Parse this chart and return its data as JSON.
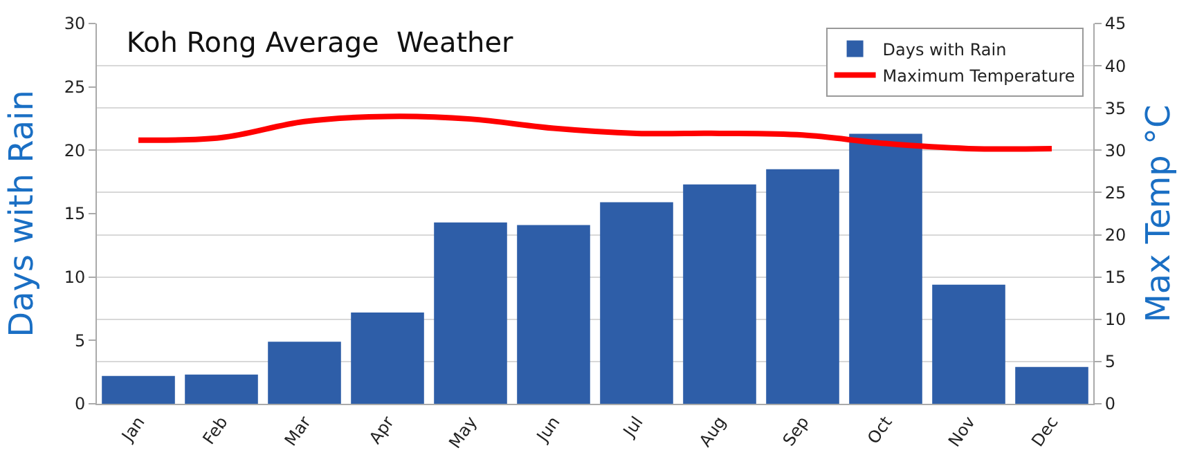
{
  "chart_data": {
    "type": "bar",
    "title": "Koh Rong Average  Weather",
    "ylabel": "Days with Rain",
    "y2label": "Max Temp °C",
    "categories": [
      "Jan",
      "Feb",
      "Mar",
      "Apr",
      "May",
      "Jun",
      "Jul",
      "Aug",
      "Sep",
      "Oct",
      "Nov",
      "Dec"
    ],
    "series": [
      {
        "name": "Days with Rain",
        "color": "#2e5ea8",
        "values": [
          2.2,
          2.3,
          4.9,
          7.2,
          14.3,
          14.1,
          15.9,
          17.3,
          18.5,
          21.3,
          9.4,
          2.9
        ]
      },
      {
        "name": "Maximum Temperature",
        "type": "line",
        "axis": "y2",
        "color": "#ff0000",
        "marker": "none",
        "line_style": "solid",
        "values": [
          31.2,
          31.5,
          33.4,
          34,
          33.7,
          32.6,
          32,
          32,
          31.8,
          30.8,
          30.2,
          30.2
        ]
      }
    ],
    "ylim": [
      0,
      30
    ],
    "yticks": [
      0,
      5,
      10,
      15,
      20,
      25,
      30
    ],
    "y2lim": [
      0,
      45
    ],
    "y2ticks": [
      0,
      5,
      10,
      15,
      20,
      25,
      30,
      35,
      40,
      45
    ],
    "grid": true,
    "legend": "top right"
  }
}
